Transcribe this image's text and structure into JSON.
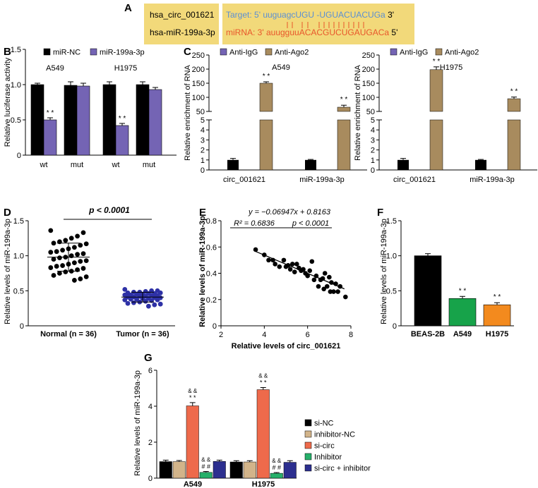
{
  "colors": {
    "black": "#000000",
    "purple": "#7464b4",
    "gold": "#a88b5e",
    "panelYellow": "#f2d97a",
    "targetBlue": "#5b8fd4",
    "mirnaRed": "#e8562b",
    "scatterNormal": "#000000",
    "scatterTumor": "#2e31a6",
    "beas": "#000000",
    "a549": "#17a34a",
    "h1975": "#f38a1e",
    "siNC": "#000000",
    "inhNC": "#d2b48a",
    "siCirc": "#ee6a4b",
    "inhibitor": "#26b06a",
    "siCircInh": "#2c2f8f"
  },
  "panels": {
    "A": {
      "letter": "A",
      "circ_name": "hsa_circ_001621",
      "mir_name": "hsa-miR-199a-3p",
      "target_prefix": "Target: 5'",
      "target_lower1": "uuguagc",
      "target_upper": "UGU -UGUACUACUG",
      "target_lower2": "a",
      "target_suffix": "3'",
      "mirna_prefix": "miRNA: 3'",
      "mirna_lower1": "auugguu",
      "mirna_upper": "ACACGUCUGAUGAC",
      "mirna_lower2": "a",
      "mirna_suffix": "5'"
    },
    "B": {
      "letter": "B"
    },
    "C": {
      "letter": "C"
    },
    "D": {
      "letter": "D"
    },
    "E": {
      "letter": "E"
    },
    "F": {
      "letter": "F"
    },
    "G": {
      "letter": "G"
    }
  },
  "chart_data": [
    {
      "id": "B",
      "type": "bar",
      "ylabel": "Relative luciferase activity",
      "ylim": [
        0,
        1.5
      ],
      "yticks": [
        "0",
        "0.5",
        "1.0",
        "1.5"
      ],
      "legend": [
        "miR-NC",
        "miR-199a-3p"
      ],
      "groupLabels": [
        "A549",
        "H1975"
      ],
      "categories": [
        "wt",
        "mut",
        "wt",
        "mut"
      ],
      "series": [
        {
          "name": "miR-NC",
          "values": [
            1.0,
            0.99,
            1.0,
            1.0
          ],
          "errors": [
            0.02,
            0.05,
            0.04,
            0.04
          ]
        },
        {
          "name": "miR-199a-3p",
          "values": [
            0.5,
            0.98,
            0.42,
            0.93
          ],
          "errors": [
            0.03,
            0.04,
            0.03,
            0.03
          ]
        }
      ],
      "annotations": [
        "* *",
        "",
        "* *",
        ""
      ]
    },
    {
      "id": "C1",
      "type": "bar",
      "cell": "A549",
      "ylabel": "Relative enrichment of RNA",
      "legend": [
        "Anti-IgG",
        "Anti-Ago2"
      ],
      "categories": [
        "circ_001621",
        "miR-199a-3p"
      ],
      "lowerTicks": [
        "0",
        "1",
        "2",
        "3",
        "4",
        "5"
      ],
      "upperTicks": [
        "50",
        "100",
        "150",
        "200",
        "250"
      ],
      "series": [
        {
          "name": "Anti-IgG",
          "values": [
            1.0,
            1.0
          ],
          "errors": [
            0.15,
            0.05
          ],
          "color": "black"
        },
        {
          "name": "Anti-Ago2",
          "values": [
            150,
            65
          ],
          "errors": [
            5,
            7
          ],
          "color": "gold"
        }
      ],
      "annotations": [
        "* *",
        "* *"
      ]
    },
    {
      "id": "C2",
      "type": "bar",
      "cell": "H1975",
      "ylabel": "Relative enrichment of RNA",
      "legend": [
        "Anti-IgG",
        "Anti-Ago2"
      ],
      "categories": [
        "circ_001621",
        "miR-199a-3p"
      ],
      "lowerTicks": [
        "0",
        "1",
        "2",
        "3",
        "4",
        "5"
      ],
      "upperTicks": [
        "50",
        "100",
        "150",
        "200",
        "250"
      ],
      "series": [
        {
          "name": "Anti-IgG",
          "values": [
            1.0,
            1.0
          ],
          "errors": [
            0.15,
            0.05
          ],
          "color": "black"
        },
        {
          "name": "Anti-Ago2",
          "values": [
            198,
            95
          ],
          "errors": [
            10,
            6
          ],
          "color": "gold"
        }
      ],
      "annotations": [
        "* *",
        "* *"
      ]
    },
    {
      "id": "D",
      "type": "scatter",
      "ylabel": "Relative levels of miR-199a-3p",
      "ylim": [
        0,
        1.5
      ],
      "yticks": [
        "0",
        "0.5",
        "1.0",
        "1.5"
      ],
      "title": "p < 0.0001",
      "categories": [
        "Normal (n = 36)",
        "Tumor (n = 36)"
      ],
      "normal": [
        1.36,
        1.33,
        1.28,
        1.25,
        1.22,
        1.2,
        1.18,
        1.17,
        1.15,
        1.12,
        1.1,
        1.08,
        1.06,
        1.05,
        1.03,
        1.02,
        1.0,
        0.98,
        0.97,
        0.95,
        0.93,
        0.92,
        0.9,
        0.88,
        0.86,
        0.85,
        0.83,
        0.82,
        0.8,
        0.78,
        0.77,
        0.75,
        0.72,
        0.7,
        0.67,
        0.65
      ],
      "tumor": [
        0.52,
        0.5,
        0.5,
        0.49,
        0.48,
        0.48,
        0.47,
        0.47,
        0.46,
        0.46,
        0.45,
        0.45,
        0.44,
        0.44,
        0.43,
        0.43,
        0.42,
        0.42,
        0.41,
        0.41,
        0.4,
        0.4,
        0.39,
        0.39,
        0.38,
        0.38,
        0.37,
        0.37,
        0.36,
        0.35,
        0.34,
        0.33,
        0.32,
        0.31,
        0.3,
        0.28
      ],
      "normalMean": 0.98,
      "normalSD": 0.2,
      "tumorMean": 0.41,
      "tumorSD": 0.07
    },
    {
      "id": "E",
      "type": "scatter",
      "xlabel": "Relative levels of circ_001621",
      "ylabel": "Relative levels of miR-199a-3p",
      "xlim": [
        2,
        8
      ],
      "ylim": [
        0,
        0.8
      ],
      "xticks": [
        "2",
        "4",
        "6",
        "8"
      ],
      "yticks": [
        "0",
        "0.2",
        "0.4",
        "0.6",
        "0.8"
      ],
      "equation": "y = −0.06947x + 0.8163",
      "r2": "R² = 0.6836",
      "pvalue": "p < 0.0001",
      "fit": {
        "slope": -0.06947,
        "intercept": 0.8163,
        "x0": 3.6,
        "x1": 7.7
      },
      "points": [
        [
          3.6,
          0.58
        ],
        [
          4.0,
          0.54
        ],
        [
          4.2,
          0.5
        ],
        [
          4.4,
          0.5
        ],
        [
          4.5,
          0.47
        ],
        [
          4.7,
          0.45
        ],
        [
          4.9,
          0.5
        ],
        [
          5.0,
          0.45
        ],
        [
          5.1,
          0.46
        ],
        [
          5.2,
          0.43
        ],
        [
          5.3,
          0.47
        ],
        [
          5.4,
          0.41
        ],
        [
          5.5,
          0.47
        ],
        [
          5.6,
          0.44
        ],
        [
          5.7,
          0.42
        ],
        [
          5.8,
          0.43
        ],
        [
          5.9,
          0.4
        ],
        [
          6.0,
          0.38
        ],
        [
          6.1,
          0.42
        ],
        [
          6.2,
          0.49
        ],
        [
          6.3,
          0.35
        ],
        [
          6.4,
          0.38
        ],
        [
          6.5,
          0.3
        ],
        [
          6.6,
          0.35
        ],
        [
          6.7,
          0.36
        ],
        [
          6.75,
          0.28
        ],
        [
          6.8,
          0.4
        ],
        [
          6.9,
          0.3
        ],
        [
          7.0,
          0.37
        ],
        [
          7.05,
          0.26
        ],
        [
          7.1,
          0.33
        ],
        [
          7.2,
          0.26
        ],
        [
          7.3,
          0.32
        ],
        [
          7.4,
          0.26
        ],
        [
          7.5,
          0.3
        ],
        [
          7.75,
          0.22
        ]
      ]
    },
    {
      "id": "F",
      "type": "bar",
      "ylabel": "Relative levels of miR-199a-3p",
      "ylim": [
        0,
        1.5
      ],
      "yticks": [
        "0",
        "0.5",
        "1.0",
        "1.5"
      ],
      "categories": [
        "BEAS-2B",
        "A549",
        "H1975"
      ],
      "values": [
        1.0,
        0.39,
        0.3
      ],
      "errors": [
        0.03,
        0.03,
        0.03
      ],
      "barColors": [
        "beas",
        "a549",
        "h1975"
      ],
      "annotations": [
        "",
        "* *",
        "* *"
      ]
    },
    {
      "id": "G",
      "type": "bar",
      "ylabel": "Relative levels of miR-199a-3p",
      "ylim": [
        0,
        6
      ],
      "yticks": [
        "0",
        "2",
        "4",
        "6"
      ],
      "categories": [
        "A549",
        "H1975"
      ],
      "series": [
        {
          "name": "si-NC",
          "values": [
            0.92,
            0.9
          ],
          "errors": [
            0.08,
            0.07
          ],
          "color": "siNC"
        },
        {
          "name": "inhibitor-NC",
          "values": [
            0.92,
            0.9
          ],
          "errors": [
            0.06,
            0.07
          ],
          "color": "inhNC"
        },
        {
          "name": "si-circ",
          "values": [
            4.02,
            4.92
          ],
          "errors": [
            0.18,
            0.12
          ],
          "color": "siCirc"
        },
        {
          "name": "Inhibitor",
          "values": [
            0.32,
            0.27
          ],
          "errors": [
            0.05,
            0.04
          ],
          "color": "inhibitor"
        },
        {
          "name": "si-circ + inhibitor",
          "values": [
            0.93,
            0.88
          ],
          "errors": [
            0.07,
            0.09
          ],
          "color": "siCircInh"
        }
      ],
      "annotations": {
        "si-circ": [
          "& &",
          "* *"
        ],
        "Inhibitor": [
          "& &",
          "# #"
        ]
      }
    }
  ]
}
